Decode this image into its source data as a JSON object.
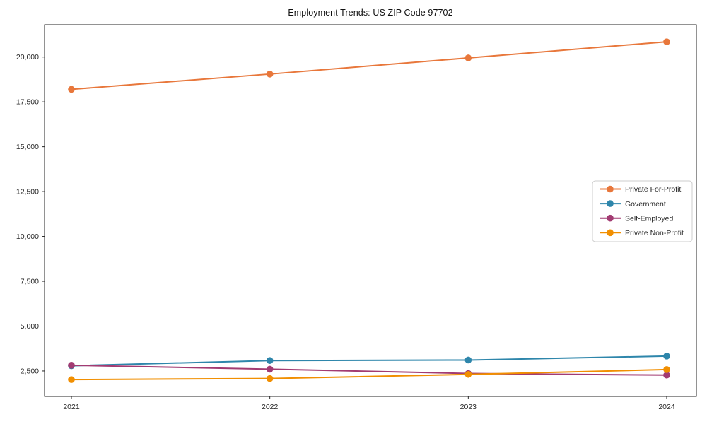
{
  "chart_data": {
    "type": "line",
    "title": "Employment Trends: US ZIP Code 97702",
    "x": [
      "2021",
      "2022",
      "2023",
      "2024"
    ],
    "series": [
      {
        "name": "Private For-Profit",
        "color": "#E8773B",
        "values": [
          18200,
          19050,
          19950,
          20850
        ]
      },
      {
        "name": "Government",
        "color": "#2E86AB",
        "values": [
          2790,
          3080,
          3110,
          3330
        ]
      },
      {
        "name": "Self-Employed",
        "color": "#A23B72",
        "values": [
          2820,
          2600,
          2360,
          2270
        ]
      },
      {
        "name": "Private Non-Profit",
        "color": "#F18F01",
        "values": [
          2020,
          2080,
          2310,
          2580
        ]
      }
    ],
    "ylim": [
      1080,
      21800
    ],
    "yticks": [
      2500,
      5000,
      7500,
      10000,
      12500,
      15000,
      17500,
      20000
    ],
    "xlabel": "",
    "ylabel": "",
    "grid": false,
    "legend_position": "center-right",
    "frame_color": "#262626",
    "legend_border_color": "#cccccc"
  }
}
